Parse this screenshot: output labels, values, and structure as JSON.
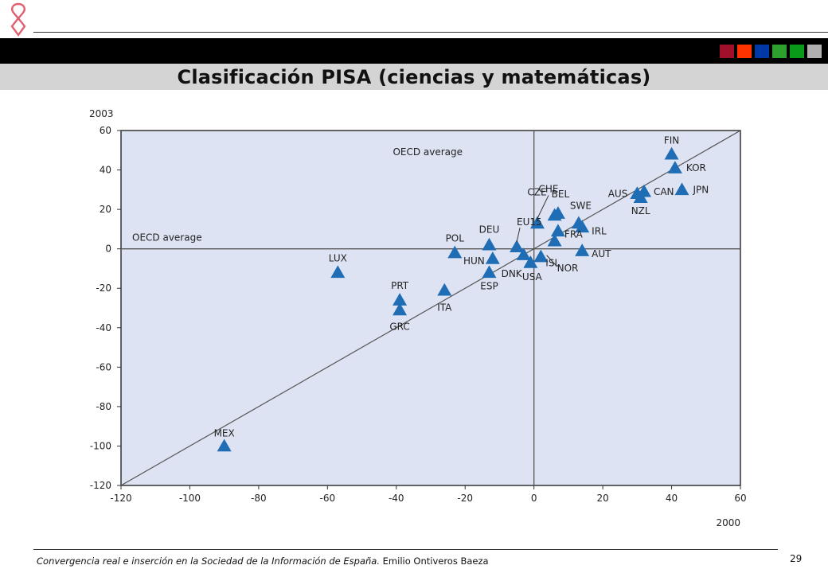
{
  "header": {
    "title": "Clasificación PISA (ciencias y matemáticas)",
    "swatch_colors": [
      "#a0102a",
      "#ff3300",
      "#0038a8",
      "#2ea02e",
      "#0a9a1a",
      "#b0b0b0"
    ]
  },
  "chart_data": {
    "type": "scatter",
    "xlabel": "2000",
    "ylabel": "2003",
    "xlim": [
      -120,
      60
    ],
    "ylim": [
      -120,
      60
    ],
    "xticks": [
      -120,
      -100,
      -80,
      -60,
      -40,
      -20,
      0,
      20,
      40,
      60
    ],
    "yticks": [
      60,
      40,
      20,
      0,
      -20,
      -40,
      -60,
      -80,
      -100,
      -120
    ],
    "grid": false,
    "reference_line": "y = x",
    "average_x_label": "OECD average",
    "average_y_label": "OECD average",
    "marker_color": "#1f6db5",
    "plot_background": "#dde3f3",
    "points": [
      {
        "label": "FIN",
        "x": 40,
        "y": 48
      },
      {
        "label": "KOR",
        "x": 41,
        "y": 41
      },
      {
        "label": "JPN",
        "x": 43,
        "y": 30
      },
      {
        "label": "CAN",
        "x": 32,
        "y": 29
      },
      {
        "label": "AUS",
        "x": 30,
        "y": 28
      },
      {
        "label": "NZL",
        "x": 31,
        "y": 26
      },
      {
        "label": "CHE",
        "x": 1,
        "y": 13
      },
      {
        "label": "BEL",
        "x": 7,
        "y": 18
      },
      {
        "label": "SWE",
        "x": 13,
        "y": 13
      },
      {
        "label": "IRL",
        "x": 14,
        "y": 11
      },
      {
        "label": "CZE",
        "x": 6,
        "y": 17
      },
      {
        "label": "FRA",
        "x": 7,
        "y": 9
      },
      {
        "label": "DEU",
        "x": -13,
        "y": 2
      },
      {
        "label": "EU15",
        "x": -5,
        "y": 1
      },
      {
        "label": "POL",
        "x": -23,
        "y": -2
      },
      {
        "label": "HUN",
        "x": -12,
        "y": -5
      },
      {
        "label": "DNK",
        "x": -3,
        "y": -3
      },
      {
        "label": "ISL",
        "x": 2,
        "y": -4
      },
      {
        "label": "USA",
        "x": -1,
        "y": -7
      },
      {
        "label": "NOR",
        "x": 6,
        "y": 4
      },
      {
        "label": "AUT",
        "x": 14,
        "y": -1
      },
      {
        "label": "ESP",
        "x": -13,
        "y": -12
      },
      {
        "label": "LUX",
        "x": -57,
        "y": -12
      },
      {
        "label": "ITA",
        "x": -26,
        "y": -21
      },
      {
        "label": "PRT",
        "x": -39,
        "y": -26
      },
      {
        "label": "GRC",
        "x": -39,
        "y": -31
      },
      {
        "label": "MEX",
        "x": -90,
        "y": -100
      }
    ]
  },
  "footer": {
    "text_italic": "Convergencia real e inserción en la Sociedad de la Información de España.",
    "author": "Emilio Ontiveros Baeza",
    "page_number": "29"
  }
}
